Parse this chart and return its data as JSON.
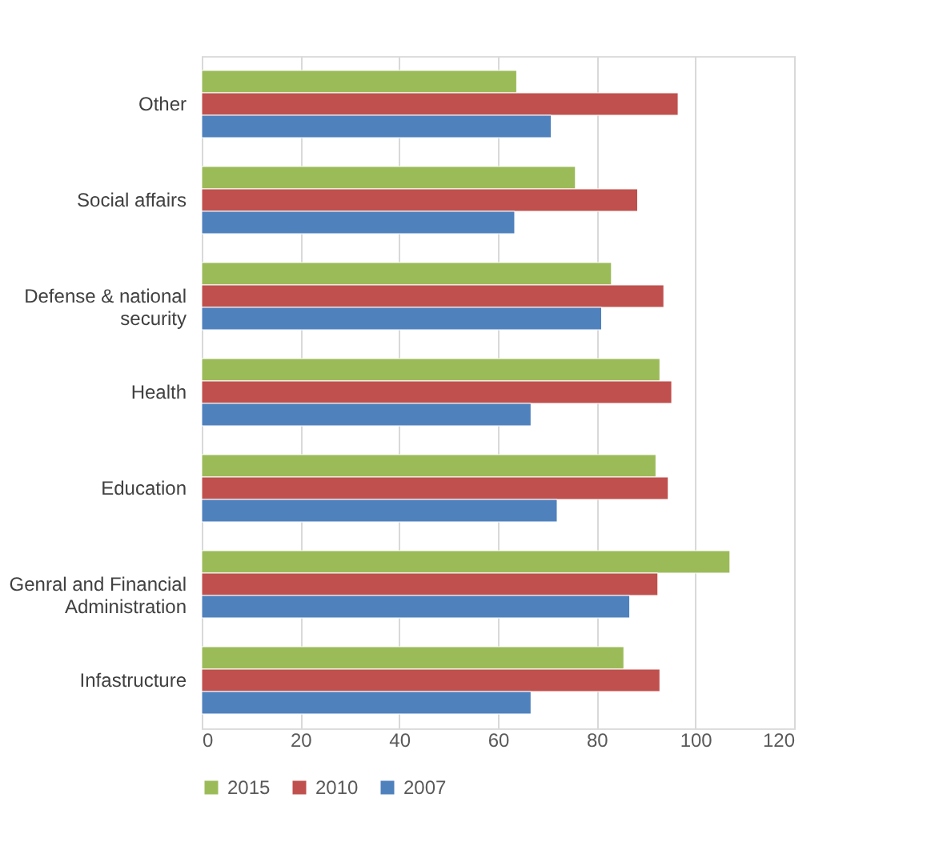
{
  "chart_data": {
    "type": "bar",
    "orientation": "horizontal",
    "categories": [
      "Other",
      "Social affairs",
      "Defense & national security",
      "Health",
      "Education",
      "Genral and Financial Administration",
      "Infastructure"
    ],
    "series": [
      {
        "name": "2015",
        "color": "#9bbb59",
        "values": [
          63.8,
          75.7,
          83,
          92.8,
          92,
          107,
          85.5
        ]
      },
      {
        "name": "2010",
        "color": "#c0504d",
        "values": [
          96.5,
          88.3,
          93.6,
          95.2,
          94.5,
          92.4,
          92.8
        ]
      },
      {
        "name": "2007",
        "color": "#4f81bd",
        "values": [
          70.8,
          63.4,
          81,
          66.7,
          72,
          86.7,
          66.7
        ]
      }
    ],
    "xlim": [
      0,
      120
    ],
    "xticks": [
      0,
      20,
      40,
      60,
      80,
      100,
      120
    ],
    "grid": "x",
    "legend": "bottom"
  }
}
